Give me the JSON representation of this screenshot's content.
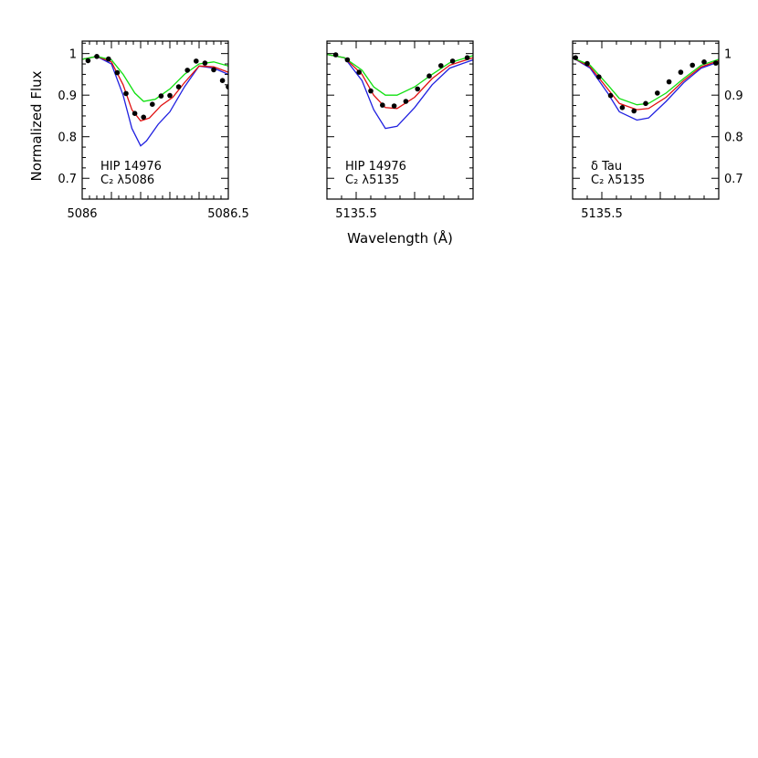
{
  "figure": {
    "ylabel": "Normalized Flux",
    "xlabel": "Wavelength (Å)",
    "colors": {
      "data": "#000000",
      "blue": "#2020e0",
      "red": "#e01010",
      "green": "#10e010"
    }
  },
  "chart_data": [
    {
      "type": "line",
      "star": "HIP 14976",
      "line_label": "C₂ λ5086",
      "xlim": [
        5086.0,
        5086.5
      ],
      "ylim": [
        0.65,
        1.03
      ],
      "xticks": [
        5086,
        5086.5
      ],
      "xtick_labels": [
        "5086",
        "5086.5"
      ],
      "yticks": [
        0.7,
        0.8,
        0.9,
        1.0
      ],
      "ytick_labels": [
        "0.7",
        "0.8",
        "0.9",
        "1"
      ],
      "ytick_side": "left",
      "observed": {
        "x": [
          5086.02,
          5086.05,
          5086.09,
          5086.12,
          5086.15,
          5086.18,
          5086.21,
          5086.24,
          5086.27,
          5086.3,
          5086.33,
          5086.36,
          5086.39,
          5086.42,
          5086.45,
          5086.48,
          5086.5
        ],
        "y": [
          0.983,
          0.993,
          0.987,
          0.954,
          0.904,
          0.856,
          0.847,
          0.878,
          0.898,
          0.899,
          0.92,
          0.96,
          0.982,
          0.977,
          0.961,
          0.935,
          0.92
        ]
      },
      "series": [
        {
          "color": "blue",
          "x": [
            5085.99,
            5086.05,
            5086.1,
            5086.14,
            5086.17,
            5086.2,
            5086.22,
            5086.26,
            5086.3,
            5086.35,
            5086.4,
            5086.45,
            5086.5
          ],
          "y": [
            0.985,
            0.993,
            0.975,
            0.9,
            0.82,
            0.778,
            0.79,
            0.83,
            0.86,
            0.92,
            0.97,
            0.965,
            0.95
          ]
        },
        {
          "color": "red",
          "x": [
            5085.99,
            5086.05,
            5086.1,
            5086.14,
            5086.17,
            5086.2,
            5086.23,
            5086.27,
            5086.31,
            5086.35,
            5086.4,
            5086.45,
            5086.5
          ],
          "y": [
            0.985,
            0.993,
            0.98,
            0.925,
            0.865,
            0.838,
            0.845,
            0.875,
            0.895,
            0.93,
            0.97,
            0.968,
            0.955
          ]
        },
        {
          "color": "green",
          "x": [
            5085.99,
            5086.05,
            5086.1,
            5086.14,
            5086.18,
            5086.21,
            5086.25,
            5086.3,
            5086.35,
            5086.4,
            5086.45,
            5086.5
          ],
          "y": [
            0.985,
            0.993,
            0.985,
            0.95,
            0.905,
            0.885,
            0.89,
            0.915,
            0.95,
            0.975,
            0.98,
            0.97
          ]
        }
      ]
    },
    {
      "type": "line",
      "star": "HIP 14976",
      "line_label": "C₂ λ5135",
      "xlim": [
        5135.45,
        5135.7
      ],
      "ylim": [
        0.65,
        1.03
      ],
      "xticks": [
        5135.5
      ],
      "xtick_labels": [
        "5135.5"
      ],
      "yticks": [
        0.7,
        0.8,
        0.9,
        1.0
      ],
      "ytick_labels": [],
      "ytick_side": "none",
      "observed": {
        "x": [
          5135.465,
          5135.485,
          5135.505,
          5135.525,
          5135.545,
          5135.565,
          5135.585,
          5135.605,
          5135.625,
          5135.645,
          5135.665,
          5135.69
        ],
        "y": [
          0.997,
          0.985,
          0.955,
          0.91,
          0.876,
          0.874,
          0.885,
          0.915,
          0.946,
          0.971,
          0.982,
          0.99
        ]
      },
      "series": [
        {
          "color": "blue",
          "x": [
            5135.45,
            5135.48,
            5135.51,
            5135.53,
            5135.55,
            5135.57,
            5135.6,
            5135.63,
            5135.66,
            5135.7
          ],
          "y": [
            0.998,
            0.99,
            0.935,
            0.865,
            0.82,
            0.825,
            0.87,
            0.925,
            0.965,
            0.985
          ]
        },
        {
          "color": "red",
          "x": [
            5135.45,
            5135.48,
            5135.51,
            5135.53,
            5135.55,
            5135.57,
            5135.6,
            5135.63,
            5135.66,
            5135.7
          ],
          "y": [
            0.998,
            0.99,
            0.95,
            0.9,
            0.87,
            0.868,
            0.895,
            0.94,
            0.972,
            0.99
          ]
        },
        {
          "color": "green",
          "x": [
            5135.45,
            5135.48,
            5135.51,
            5135.53,
            5135.55,
            5135.57,
            5135.6,
            5135.63,
            5135.66,
            5135.7
          ],
          "y": [
            0.998,
            0.99,
            0.96,
            0.92,
            0.9,
            0.9,
            0.92,
            0.95,
            0.978,
            0.995
          ]
        }
      ]
    },
    {
      "type": "line",
      "star": "δ Tau",
      "line_label": "C₂ λ5135",
      "xlim": [
        5135.45,
        5135.7
      ],
      "ylim": [
        0.65,
        1.03
      ],
      "xticks": [
        5135.5
      ],
      "xtick_labels": [
        "5135.5"
      ],
      "yticks": [
        0.7,
        0.8,
        0.9,
        1.0
      ],
      "ytick_labels": [
        "0.7",
        "0.8",
        "0.9",
        "1"
      ],
      "ytick_side": "right",
      "observed": {
        "x": [
          5135.455,
          5135.475,
          5135.495,
          5135.515,
          5135.535,
          5135.555,
          5135.575,
          5135.595,
          5135.615,
          5135.635,
          5135.655,
          5135.675,
          5135.695
        ],
        "y": [
          0.99,
          0.976,
          0.944,
          0.899,
          0.87,
          0.862,
          0.88,
          0.905,
          0.932,
          0.955,
          0.972,
          0.98,
          0.977
        ]
      },
      "series": [
        {
          "color": "blue",
          "x": [
            5135.45,
            5135.48,
            5135.51,
            5135.53,
            5135.56,
            5135.58,
            5135.61,
            5135.64,
            5135.67,
            5135.7
          ],
          "y": [
            0.99,
            0.965,
            0.905,
            0.86,
            0.84,
            0.845,
            0.885,
            0.93,
            0.965,
            0.98
          ]
        },
        {
          "color": "red",
          "x": [
            5135.45,
            5135.48,
            5135.51,
            5135.53,
            5135.56,
            5135.58,
            5135.61,
            5135.64,
            5135.67,
            5135.7
          ],
          "y": [
            0.99,
            0.968,
            0.915,
            0.88,
            0.865,
            0.868,
            0.895,
            0.935,
            0.968,
            0.983
          ]
        },
        {
          "color": "green",
          "x": [
            5135.45,
            5135.48,
            5135.51,
            5135.53,
            5135.56,
            5135.58,
            5135.61,
            5135.64,
            5135.67,
            5135.7
          ],
          "y": [
            0.99,
            0.972,
            0.925,
            0.892,
            0.877,
            0.88,
            0.905,
            0.94,
            0.972,
            0.986
          ]
        }
      ]
    }
  ]
}
